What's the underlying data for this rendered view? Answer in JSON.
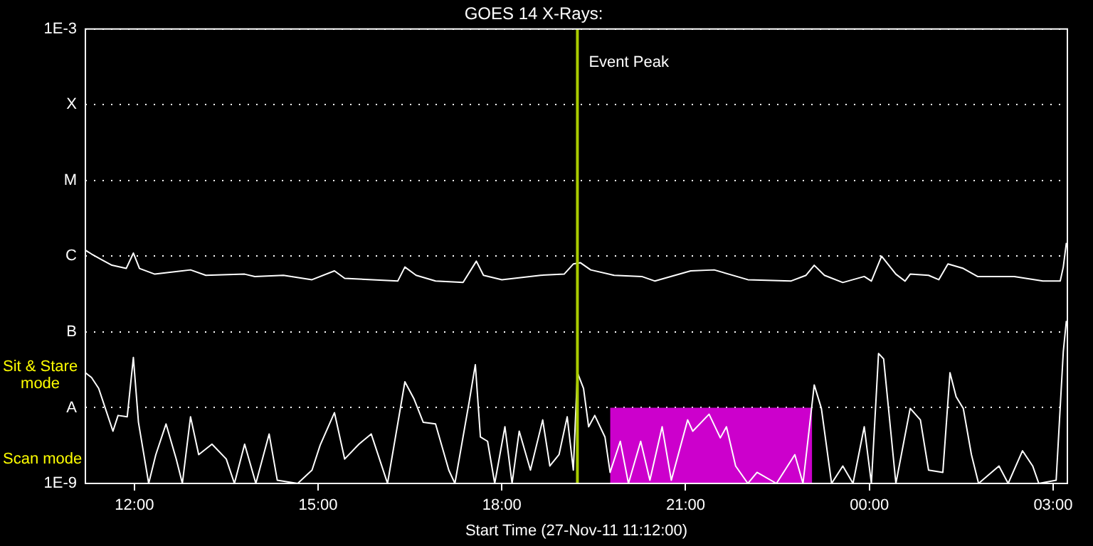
{
  "chart_data": {
    "type": "line",
    "title": "GOES 14 X-Rays:",
    "xlabel": "Start Time (27-Nov-11 11:12:00)",
    "xlim": [
      "--11-27T11:12",
      "--11-28T03:14"
    ],
    "xticks": [
      {
        "value": "--11-27T12:00",
        "label": "12:00"
      },
      {
        "value": "--11-27T15:00",
        "label": "15:00"
      },
      {
        "value": "--11-27T18:00",
        "label": "18:00"
      },
      {
        "value": "--11-27T21:00",
        "label": "21:00"
      },
      {
        "value": "--11-28T00:00",
        "label": "00:00"
      },
      {
        "value": "--11-28T03:00",
        "label": "03:00"
      }
    ],
    "ylim": [
      1e-09,
      0.001
    ],
    "log": true,
    "yticks": [
      {
        "value": 1e-09,
        "label": "1E-9"
      },
      {
        "value": 1e-08,
        "label": "A"
      },
      {
        "value": 1e-07,
        "label": "B"
      },
      {
        "value": 1e-06,
        "label": "C"
      },
      {
        "value": 1e-05,
        "label": "M"
      },
      {
        "value": 0.0001,
        "label": "X"
      },
      {
        "value": 0.001,
        "label": "1E-3"
      }
    ],
    "grid": "y",
    "legend": false,
    "marker": "none",
    "line_style": "solid",
    "series": [
      {
        "color": "#ffffff",
        "x": [
          "--11-27T11:12",
          "--11-27T11:18",
          "--11-27T11:28",
          "--11-27T11:38",
          "--11-27T11:52",
          "--11-27T11:59",
          "--11-27T12:05",
          "--11-27T12:20",
          "--11-27T12:55",
          "--11-27T13:10",
          "--11-27T13:48",
          "--11-27T13:58",
          "--11-27T14:26",
          "--11-27T14:54",
          "--11-27T15:16",
          "--11-27T15:26",
          "--11-27T16:18",
          "--11-27T16:25",
          "--11-27T16:36",
          "--11-27T16:55",
          "--11-27T17:22",
          "--11-27T17:35",
          "--11-27T17:42",
          "--11-27T18:00",
          "--11-27T18:38",
          "--11-27T19:01",
          "--11-27T19:10",
          "--11-27T19:17",
          "--11-27T19:27",
          "--11-27T19:50",
          "--11-27T20:17",
          "--11-27T20:30",
          "--11-27T21:05",
          "--11-27T21:28",
          "--11-27T22:01",
          "--11-27T22:43",
          "--11-27T22:58",
          "--11-27T23:06",
          "--11-27T23:16",
          "--11-27T23:34",
          "--11-27T23:55",
          "--11-28T00:02",
          "--11-28T00:12",
          "--11-28T00:26",
          "--11-28T00:35",
          "--11-28T00:40",
          "--11-28T00:58",
          "--11-28T01:08",
          "--11-28T01:17",
          "--11-28T01:32",
          "--11-28T01:46",
          "--11-28T02:22",
          "--11-28T02:50",
          "--11-28T03:07",
          "--11-28T03:10",
          "--11-28T03:13"
        ],
        "values": [
          1.2e-06,
          1.07e-06,
          9e-07,
          7.6e-07,
          6.9e-07,
          1.1e-06,
          6.9e-07,
          5.8e-07,
          6.6e-07,
          5.6e-07,
          5.8e-07,
          5.4e-07,
          5.6e-07,
          4.9e-07,
          6.4e-07,
          5.1e-07,
          4.7e-07,
          7.2e-07,
          5.6e-07,
          4.7e-07,
          4.5e-07,
          8.6e-07,
          5.6e-07,
          4.9e-07,
          5.6e-07,
          5.8e-07,
          7.9e-07,
          8.2e-07,
          6.6e-07,
          5.6e-07,
          5.4e-07,
          4.7e-07,
          6.4e-07,
          6.6e-07,
          4.9e-07,
          4.7e-07,
          5.6e-07,
          7.6e-07,
          5.6e-07,
          4.5e-07,
          5.4e-07,
          4.7e-07,
          1e-06,
          5.8e-07,
          4.7e-07,
          5.8e-07,
          5.6e-07,
          4.9e-07,
          7.9e-07,
          6.9e-07,
          5.4e-07,
          5.4e-07,
          4.7e-07,
          4.7e-07,
          7.2e-07,
          1.5e-06
        ]
      },
      {
        "color": "#ffffff",
        "x": [
          "--11-27T11:12",
          "--11-27T11:18",
          "--11-27T11:25",
          "--11-27T11:32",
          "--11-27T11:39",
          "--11-27T11:44",
          "--11-27T11:53",
          "--11-27T11:59",
          "--11-27T12:04",
          "--11-27T12:14",
          "--11-27T12:21",
          "--11-27T12:31",
          "--11-27T12:41",
          "--11-27T12:47",
          "--11-27T12:55",
          "--11-27T13:03",
          "--11-27T13:16",
          "--11-27T13:30",
          "--11-27T13:38",
          "--11-27T13:48",
          "--11-27T13:59",
          "--11-27T14:12",
          "--11-27T14:20",
          "--11-27T14:40",
          "--11-27T14:54",
          "--11-27T15:02",
          "--11-27T15:16",
          "--11-27T15:26",
          "--11-27T15:40",
          "--11-27T15:52",
          "--11-27T16:08",
          "--11-27T16:25",
          "--11-27T16:34",
          "--11-27T16:43",
          "--11-27T16:55",
          "--11-27T17:08",
          "--11-27T17:14",
          "--11-27T17:28",
          "--11-27T17:34",
          "--11-27T17:39",
          "--11-27T17:46",
          "--11-27T17:53",
          "--11-27T18:03",
          "--11-27T18:10",
          "--11-27T18:17",
          "--11-27T18:28",
          "--11-27T18:40",
          "--11-27T18:47",
          "--11-27T18:56",
          "--11-27T19:04",
          "--11-27T19:10",
          "--11-27T19:14",
          "--11-27T19:20",
          "--11-27T19:25",
          "--11-27T19:31",
          "--11-27T19:41",
          "--11-27T19:46",
          "--11-27T19:56",
          "--11-27T20:04",
          "--11-27T20:16",
          "--11-27T20:25",
          "--11-27T20:37",
          "--11-27T20:46",
          "--11-27T21:02",
          "--11-27T21:07",
          "--11-27T21:23",
          "--11-27T21:34",
          "--11-27T21:40",
          "--11-27T21:49",
          "--11-27T22:01",
          "--11-27T22:10",
          "--11-27T22:29",
          "--11-27T22:47",
          "--11-27T22:55",
          "--11-27T23:06",
          "--11-27T23:13",
          "--11-27T23:23",
          "--11-27T23:34",
          "--11-27T23:44",
          "--11-27T23:55",
          "--11-28T00:02",
          "--11-28T00:09",
          "--11-28T00:14",
          "--11-28T00:26",
          "--11-28T00:40",
          "--11-28T00:50",
          "--11-28T00:58",
          "--11-28T01:12",
          "--11-28T01:19",
          "--11-28T01:25",
          "--11-28T01:32",
          "--11-28T01:40",
          "--11-28T01:47",
          "--11-28T02:07",
          "--11-28T02:16",
          "--11-28T02:30",
          "--11-28T02:40",
          "--11-28T02:46",
          "--11-28T03:03",
          "--11-28T03:10",
          "--11-28T03:13"
        ],
        "values": [
          2.9e-08,
          2.5e-08,
          1.8e-08,
          9.4e-09,
          4.9e-09,
          7.9e-09,
          7.6e-09,
          4.6e-08,
          6.4e-09,
          1e-09,
          2.4e-09,
          6.1e-09,
          2.1e-09,
          1e-09,
          7.6e-09,
          2.4e-09,
          3.3e-09,
          2.1e-09,
          1e-09,
          3.3e-09,
          1e-09,
          4.5e-09,
          1.1e-09,
          1e-09,
          1.5e-09,
          3.2e-09,
          8.6e-09,
          2.1e-09,
          3.3e-09,
          4.5e-09,
          1e-09,
          2.2e-08,
          1.3e-08,
          6.4e-09,
          6.1e-09,
          1.5e-09,
          1e-09,
          1.2e-08,
          3.7e-08,
          4.1e-09,
          3.6e-09,
          1e-09,
          5.6e-09,
          1e-09,
          4.9e-09,
          1.5e-09,
          6.9e-09,
          1.7e-09,
          2.4e-09,
          7.6e-09,
          1.5e-09,
          2.9e-08,
          1.8e-08,
          5.6e-09,
          7.9e-09,
          4.1e-09,
          1.4e-09,
          3.6e-09,
          1e-09,
          3.6e-09,
          1.1e-09,
          5.6e-09,
          1.1e-09,
          6.9e-09,
          4.9e-09,
          8.2e-09,
          4e-09,
          5.6e-09,
          1.7e-09,
          1e-09,
          1.4e-09,
          1e-09,
          2.4e-09,
          1e-09,
          2e-08,
          9.8e-09,
          1e-09,
          1.7e-09,
          1e-09,
          5.6e-09,
          1e-09,
          5.2e-08,
          4.4e-08,
          1e-09,
          9.8e-09,
          6.9e-09,
          1.5e-09,
          1.4e-09,
          2.9e-08,
          1.4e-08,
          9.8e-09,
          2.4e-09,
          1e-09,
          1.7e-09,
          1e-09,
          2.7e-09,
          1.7e-09,
          1e-09,
          1.1e-09,
          5.5e-08,
          1.4e-07
        ]
      },
      {
        "type": "area",
        "color": "#cc00cc",
        "x": [
          "--11-27T19:46",
          "--11-27T23:04"
        ],
        "values": [
          1e-08,
          1e-08
        ]
      }
    ],
    "ref_lines": [
      {
        "axis": "x",
        "value": "--11-27T19:14",
        "label": "Event Peak",
        "color": "#aacc00"
      }
    ],
    "annotations": [
      "Sit & Stare mode",
      "Scan mode"
    ]
  }
}
